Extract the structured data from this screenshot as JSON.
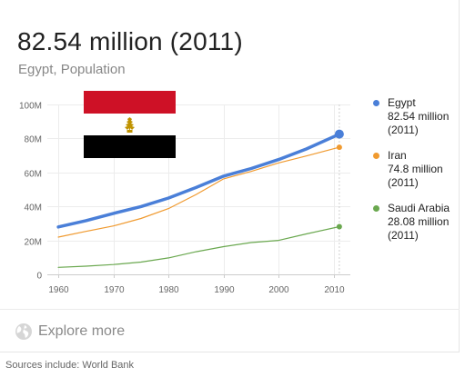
{
  "header": {
    "value": "82.54 million (2011)",
    "subtitle": "Egypt, Population"
  },
  "legend": [
    {
      "name": "Egypt",
      "value": "82.54 million",
      "year": "(2011)",
      "color": "#4a7fd8"
    },
    {
      "name": "Iran",
      "value": "74.8 million",
      "year": "(2011)",
      "color": "#f09a2f"
    },
    {
      "name": "Saudi Arabia",
      "value": "28.08 million",
      "year": "(2011)",
      "color": "#6aa84f"
    }
  ],
  "footer": {
    "explore_label": "Explore more",
    "source": "Sources include: World Bank"
  },
  "flag": {
    "country": "Egypt",
    "colors": [
      "#ce1126",
      "#ffffff",
      "#000000"
    ],
    "emblem_color": "#c09300"
  },
  "chart_data": {
    "type": "line",
    "x_ticks": [
      1960,
      1970,
      1980,
      1990,
      2000,
      2010
    ],
    "y_ticks": [
      0,
      20,
      40,
      60,
      80,
      100
    ],
    "y_tick_labels": [
      "0",
      "20M",
      "40M",
      "60M",
      "80M",
      "100M"
    ],
    "xlim": [
      1958,
      2013
    ],
    "ylim": [
      0,
      100
    ],
    "grid": true,
    "legend_placement": "right",
    "highlight_year": 2011,
    "series": [
      {
        "name": "Egypt",
        "color": "#4a7fd8",
        "x": [
          1960,
          1965,
          1970,
          1975,
          1980,
          1985,
          1990,
          1995,
          2000,
          2005,
          2011
        ],
        "y": [
          27.9,
          31.6,
          35.9,
          39.9,
          44.9,
          51.1,
          57.8,
          62.3,
          67.6,
          73.8,
          82.54
        ]
      },
      {
        "name": "Iran",
        "color": "#f09a2f",
        "x": [
          1960,
          1965,
          1970,
          1975,
          1980,
          1985,
          1990,
          1995,
          2000,
          2005,
          2011
        ],
        "y": [
          21.9,
          25.3,
          28.5,
          32.9,
          38.7,
          47.0,
          56.2,
          60.6,
          65.6,
          69.7,
          74.8
        ]
      },
      {
        "name": "Saudi Arabia",
        "color": "#6aa84f",
        "x": [
          1960,
          1965,
          1970,
          1975,
          1980,
          1985,
          1990,
          1995,
          2000,
          2005,
          2011
        ],
        "y": [
          4.1,
          4.8,
          5.8,
          7.2,
          9.7,
          13.3,
          16.3,
          18.7,
          20.0,
          23.8,
          28.08
        ]
      }
    ]
  }
}
